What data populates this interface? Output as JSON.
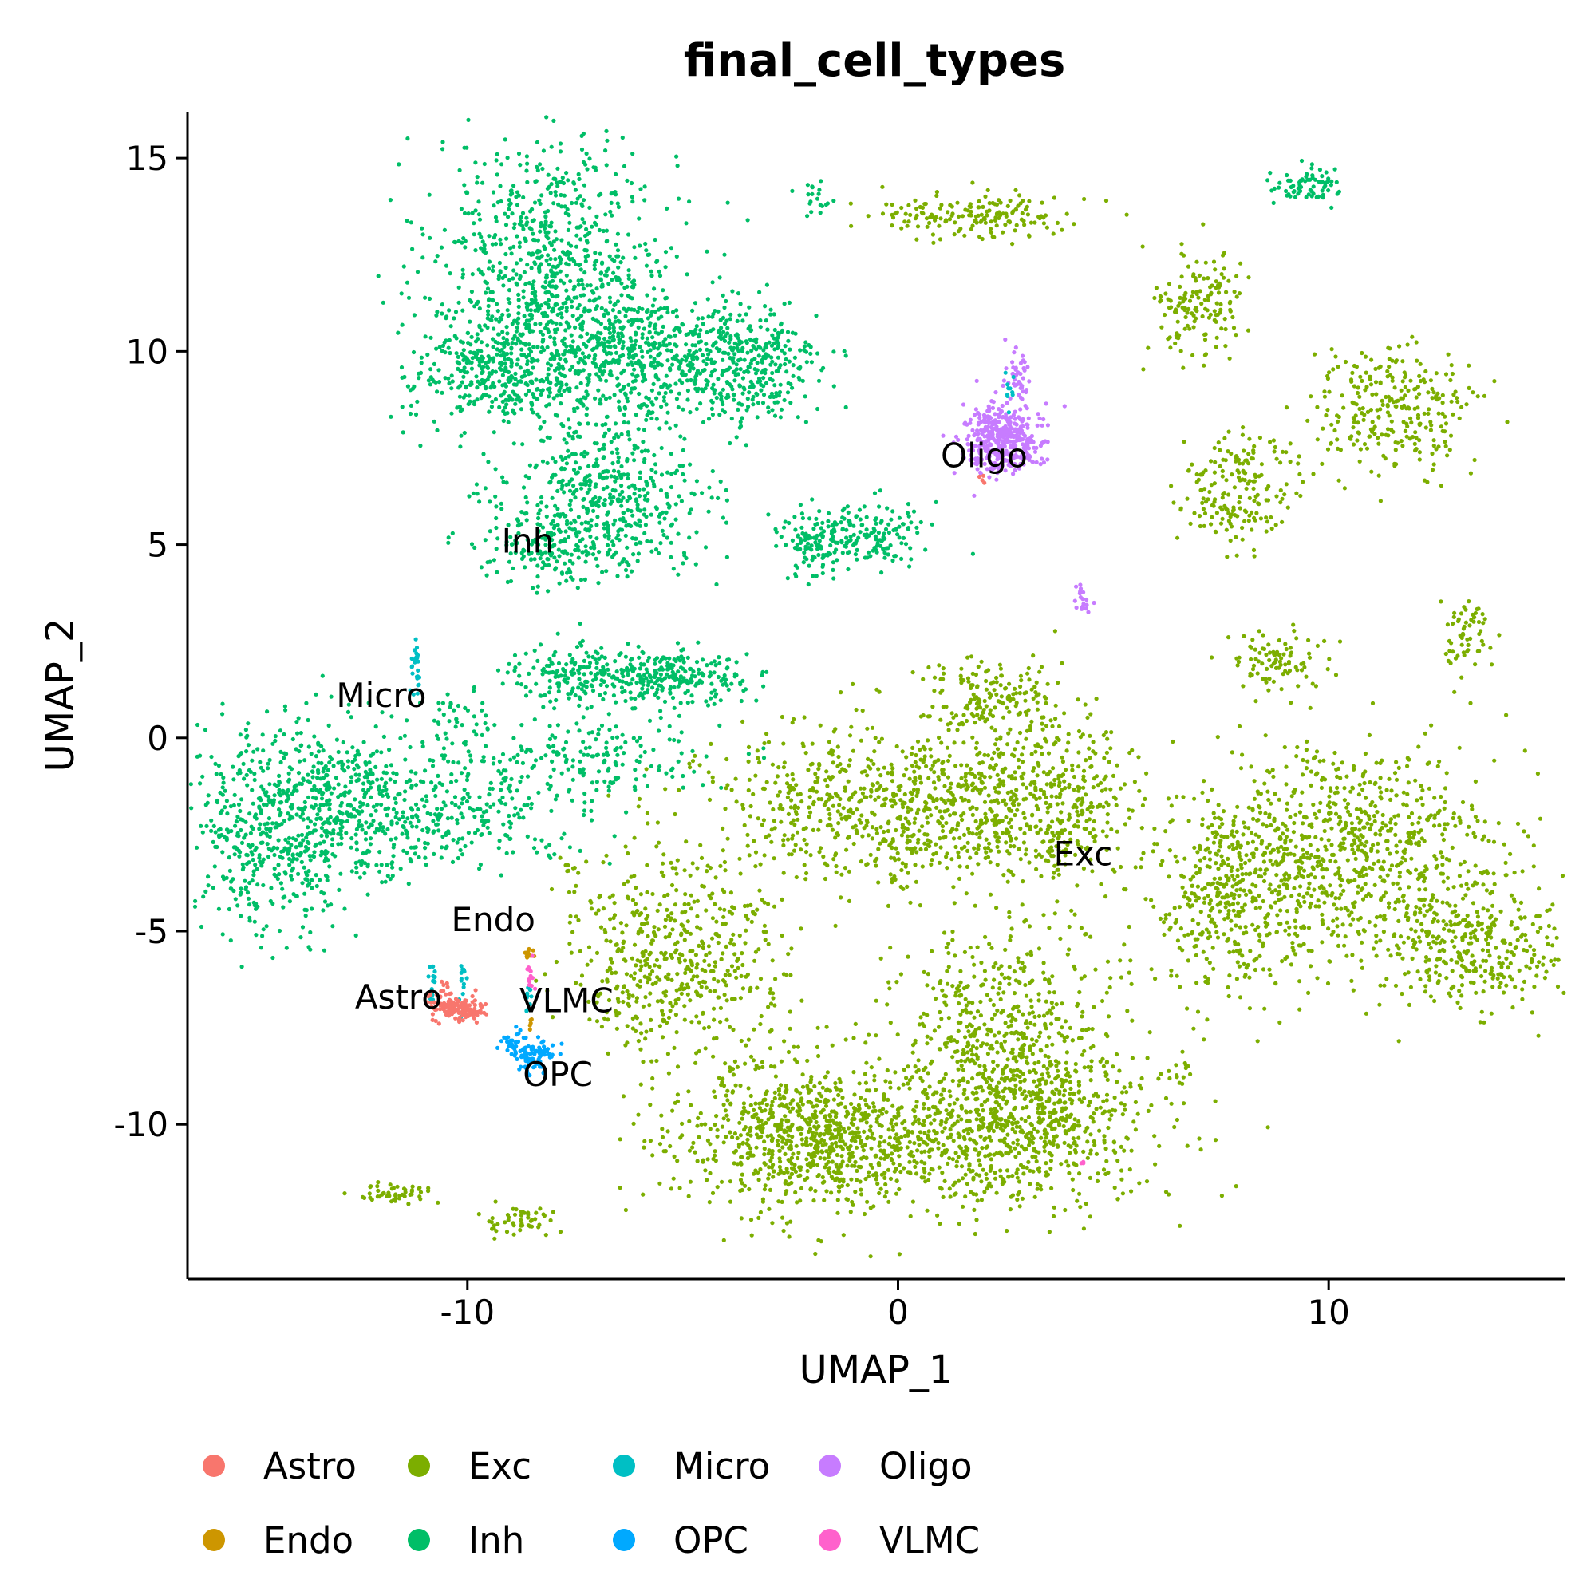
{
  "chart_data": {
    "type": "scatter",
    "title": "final_cell_types",
    "xlabel": "UMAP_1",
    "ylabel": "UMAP_2",
    "xlim": [
      -16.5,
      15.5
    ],
    "ylim": [
      -14,
      16.2
    ],
    "xticks": [
      -10,
      0,
      10
    ],
    "xtick_labels": [
      "-10",
      "0",
      "10"
    ],
    "yticks": [
      15,
      10,
      5,
      0,
      -5,
      -10
    ],
    "ytick_labels": [
      "15",
      "10",
      "5",
      "0",
      "-5",
      "-10"
    ],
    "grid": false,
    "legend_position": "bottom",
    "legend": [
      {
        "name": "Astro",
        "color": "#F8766D"
      },
      {
        "name": "Exc",
        "color": "#7CAE00"
      },
      {
        "name": "Micro",
        "color": "#00BFC4"
      },
      {
        "name": "Oligo",
        "color": "#C77CFF"
      },
      {
        "name": "Endo",
        "color": "#CD9600"
      },
      {
        "name": "Inh",
        "color": "#00BE67"
      },
      {
        "name": "OPC",
        "color": "#00A9FF"
      },
      {
        "name": "VLMC",
        "color": "#FF61CC"
      }
    ],
    "cluster_labels": [
      {
        "text": "Inh",
        "x": -8.6,
        "y": 4.8
      },
      {
        "text": "Oligo",
        "x": 2.0,
        "y": 7.0
      },
      {
        "text": "Micro",
        "x": -12.0,
        "y": 0.8
      },
      {
        "text": "Exc",
        "x": 4.3,
        "y": -3.3
      },
      {
        "text": "Endo",
        "x": -9.4,
        "y": -5.0
      },
      {
        "text": "Astro",
        "x": -11.6,
        "y": -7.0
      },
      {
        "text": "VLMC",
        "x": -7.7,
        "y": -7.1
      },
      {
        "text": "OPC",
        "x": -7.9,
        "y": -9.0
      }
    ],
    "series": [
      {
        "name": "Inh",
        "color": "#00BE67",
        "clusters": [
          {
            "cx": -8.0,
            "cy": 12.0,
            "sx": 1.4,
            "sy": 1.8,
            "n": 900
          },
          {
            "cx": -9.3,
            "cy": 9.5,
            "sx": 1.0,
            "sy": 0.7,
            "n": 320
          },
          {
            "cx": -6.0,
            "cy": 9.8,
            "sx": 1.3,
            "sy": 0.8,
            "n": 420
          },
          {
            "cx": -3.6,
            "cy": 9.6,
            "sx": 0.9,
            "sy": 0.9,
            "n": 350
          },
          {
            "cx": -6.8,
            "cy": 6.2,
            "sx": 1.2,
            "sy": 1.0,
            "n": 480
          },
          {
            "cx": -7.8,
            "cy": 5.0,
            "sx": 0.8,
            "sy": 0.5,
            "n": 150
          },
          {
            "cx": -2.0,
            "cy": 5.1,
            "sx": 0.4,
            "sy": 0.5,
            "n": 120
          },
          {
            "cx": -0.5,
            "cy": 5.3,
            "sx": 0.6,
            "sy": 0.4,
            "n": 130
          },
          {
            "cx": -1.9,
            "cy": 14.0,
            "sx": 0.2,
            "sy": 0.3,
            "n": 20
          },
          {
            "cx": 9.5,
            "cy": 14.3,
            "sx": 0.4,
            "sy": 0.25,
            "n": 70
          },
          {
            "cx": -14.5,
            "cy": -2.3,
            "sx": 0.9,
            "sy": 1.3,
            "n": 520
          },
          {
            "cx": -12.5,
            "cy": -1.7,
            "sx": 0.9,
            "sy": 1.0,
            "n": 320
          },
          {
            "cx": -10.2,
            "cy": -2.0,
            "sx": 1.5,
            "sy": 0.6,
            "n": 220
          },
          {
            "cx": -7.2,
            "cy": -0.5,
            "sx": 1.6,
            "sy": 0.6,
            "n": 200
          },
          {
            "cx": -7.3,
            "cy": 1.6,
            "sx": 0.9,
            "sy": 0.35,
            "n": 200
          },
          {
            "cx": -5.0,
            "cy": 1.6,
            "sx": 0.8,
            "sy": 0.35,
            "n": 200
          },
          {
            "cx": -10.3,
            "cy": 0.0,
            "sx": 0.4,
            "sy": 0.6,
            "n": 50
          }
        ]
      },
      {
        "name": "Exc",
        "color": "#7CAE00",
        "clusters": [
          {
            "cx": 1.9,
            "cy": 13.5,
            "sx": 1.2,
            "sy": 0.3,
            "n": 170
          },
          {
            "cx": 7.0,
            "cy": 11.2,
            "sx": 0.5,
            "sy": 0.7,
            "n": 150
          },
          {
            "cx": 11.5,
            "cy": 8.5,
            "sx": 0.9,
            "sy": 0.8,
            "n": 280
          },
          {
            "cx": 8.0,
            "cy": 7.0,
            "sx": 0.8,
            "sy": 0.5,
            "n": 100
          },
          {
            "cx": 7.8,
            "cy": 5.8,
            "sx": 0.6,
            "sy": 0.5,
            "n": 90
          },
          {
            "cx": 8.8,
            "cy": 2.0,
            "sx": 0.6,
            "sy": 0.4,
            "n": 90
          },
          {
            "cx": 13.1,
            "cy": 2.5,
            "sx": 0.3,
            "sy": 0.6,
            "n": 60
          },
          {
            "cx": 2.3,
            "cy": 1.0,
            "sx": 0.9,
            "sy": 0.5,
            "n": 170
          },
          {
            "cx": 0.0,
            "cy": -1.8,
            "sx": 2.3,
            "sy": 1.0,
            "n": 850
          },
          {
            "cx": 3.5,
            "cy": -1.6,
            "sx": 1.1,
            "sy": 1.0,
            "n": 300
          },
          {
            "cx": -5.2,
            "cy": -5.7,
            "sx": 1.2,
            "sy": 1.2,
            "n": 520
          },
          {
            "cx": 10.3,
            "cy": -3.0,
            "sx": 1.9,
            "sy": 1.4,
            "n": 850
          },
          {
            "cx": 13.3,
            "cy": -5.5,
            "sx": 1.2,
            "sy": 0.8,
            "n": 320
          },
          {
            "cx": 7.6,
            "cy": -4.3,
            "sx": 0.9,
            "sy": 1.3,
            "n": 320
          },
          {
            "cx": 2.3,
            "cy": -7.6,
            "sx": 1.3,
            "sy": 1.5,
            "n": 520
          },
          {
            "cx": 0.0,
            "cy": -10.5,
            "sx": 2.6,
            "sy": 0.9,
            "n": 950
          },
          {
            "cx": -2.6,
            "cy": -10.2,
            "sx": 1.1,
            "sy": 1.0,
            "n": 350
          },
          {
            "cx": 3.6,
            "cy": -9.6,
            "sx": 1.2,
            "sy": 1.0,
            "n": 350
          },
          {
            "cx": -11.8,
            "cy": -11.8,
            "sx": 0.5,
            "sy": 0.15,
            "n": 50
          },
          {
            "cx": -8.8,
            "cy": -12.5,
            "sx": 0.5,
            "sy": 0.2,
            "n": 50
          },
          {
            "cx": -7.6,
            "cy": -3.4,
            "sx": 0.1,
            "sy": 0.1,
            "n": 8
          },
          {
            "cx": 6.5,
            "cy": -8.6,
            "sx": 0.15,
            "sy": 0.15,
            "n": 10
          }
        ]
      },
      {
        "name": "Oligo",
        "color": "#C77CFF",
        "clusters": [
          {
            "cx": 2.4,
            "cy": 7.7,
            "sx": 0.45,
            "sy": 0.45,
            "n": 420
          },
          {
            "cx": 2.8,
            "cy": 9.5,
            "sx": 0.15,
            "sy": 0.3,
            "n": 40
          },
          {
            "cx": 4.3,
            "cy": 3.5,
            "sx": 0.1,
            "sy": 0.2,
            "n": 20
          }
        ]
      },
      {
        "name": "Micro",
        "color": "#00BFC4",
        "clusters": [
          {
            "cx": -11.2,
            "cy": 1.8,
            "sx": 0.06,
            "sy": 0.3,
            "n": 25
          },
          {
            "cx": -10.8,
            "cy": -6.2,
            "sx": 0.05,
            "sy": 0.3,
            "n": 15
          },
          {
            "cx": -10.1,
            "cy": -6.3,
            "sx": 0.05,
            "sy": 0.3,
            "n": 15
          },
          {
            "cx": -8.6,
            "cy": -6.7,
            "sx": 0.05,
            "sy": 0.25,
            "n": 10
          },
          {
            "cx": 2.6,
            "cy": 9.0,
            "sx": 0.05,
            "sy": 0.25,
            "n": 10
          }
        ]
      },
      {
        "name": "Astro",
        "color": "#F8766D",
        "clusters": [
          {
            "cx": -10.2,
            "cy": -7.0,
            "sx": 0.35,
            "sy": 0.15,
            "n": 130
          },
          {
            "cx": -10.6,
            "cy": -6.6,
            "sx": 0.1,
            "sy": 0.15,
            "n": 15
          },
          {
            "cx": 1.9,
            "cy": 6.7,
            "sx": 0.05,
            "sy": 0.05,
            "n": 4
          }
        ]
      },
      {
        "name": "Endo",
        "color": "#CD9600",
        "clusters": [
          {
            "cx": -8.6,
            "cy": -5.6,
            "sx": 0.07,
            "sy": 0.08,
            "n": 12
          },
          {
            "cx": -8.5,
            "cy": -7.4,
            "sx": 0.04,
            "sy": 0.1,
            "n": 5
          }
        ]
      },
      {
        "name": "OPC",
        "color": "#00A9FF",
        "clusters": [
          {
            "cx": -8.5,
            "cy": -8.2,
            "sx": 0.22,
            "sy": 0.22,
            "n": 90
          },
          {
            "cx": -9.0,
            "cy": -7.8,
            "sx": 0.12,
            "sy": 0.15,
            "n": 20
          }
        ]
      },
      {
        "name": "VLMC",
        "color": "#FF61CC",
        "clusters": [
          {
            "cx": -8.55,
            "cy": -6.1,
            "sx": 0.04,
            "sy": 0.2,
            "n": 14
          },
          {
            "cx": 4.3,
            "cy": -11.0,
            "sx": 0.04,
            "sy": 0.04,
            "n": 3
          }
        ]
      }
    ]
  }
}
